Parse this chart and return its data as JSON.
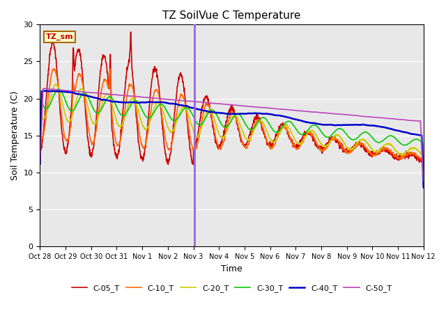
{
  "title": "TZ SoilVue C Temperature",
  "ylabel": "Soil Temperature (C)",
  "xlabel": "Time",
  "ylim": [
    0,
    30
  ],
  "yticks": [
    0,
    5,
    10,
    15,
    20,
    25,
    30
  ],
  "background_color": "#e8e8e8",
  "fig_background": "#ffffff",
  "annotation_label": "TZ_sm",
  "annotation_box_color": "#ffffcc",
  "annotation_border_color": "#aa6600",
  "vline_color": "#9966dd",
  "vline_x_days": 6.05,
  "series": {
    "C-05_T": {
      "color": "#cc0000",
      "linewidth": 1.2
    },
    "C-10_T": {
      "color": "#ff6600",
      "linewidth": 1.2
    },
    "C-20_T": {
      "color": "#cccc00",
      "linewidth": 1.2
    },
    "C-30_T": {
      "color": "#00cc00",
      "linewidth": 1.2
    },
    "C-40_T": {
      "color": "#0000cc",
      "linewidth": 1.8
    },
    "C-50_T": {
      "color": "#bb44bb",
      "linewidth": 1.2
    }
  },
  "xtick_labels": [
    "Oct 28",
    "Oct 29",
    "Oct 30",
    "Oct 31",
    "Nov 1",
    "Nov 2",
    "Nov 3",
    "Nov 4",
    "Nov 5",
    "Nov 6",
    "Nov 7",
    "Nov 8",
    "Nov 9",
    "Nov 10",
    "Nov 11",
    "Nov 12"
  ],
  "xtick_days": [
    0,
    1,
    2,
    3,
    4,
    5,
    6,
    7,
    8,
    9,
    10,
    11,
    12,
    13,
    14,
    15
  ]
}
